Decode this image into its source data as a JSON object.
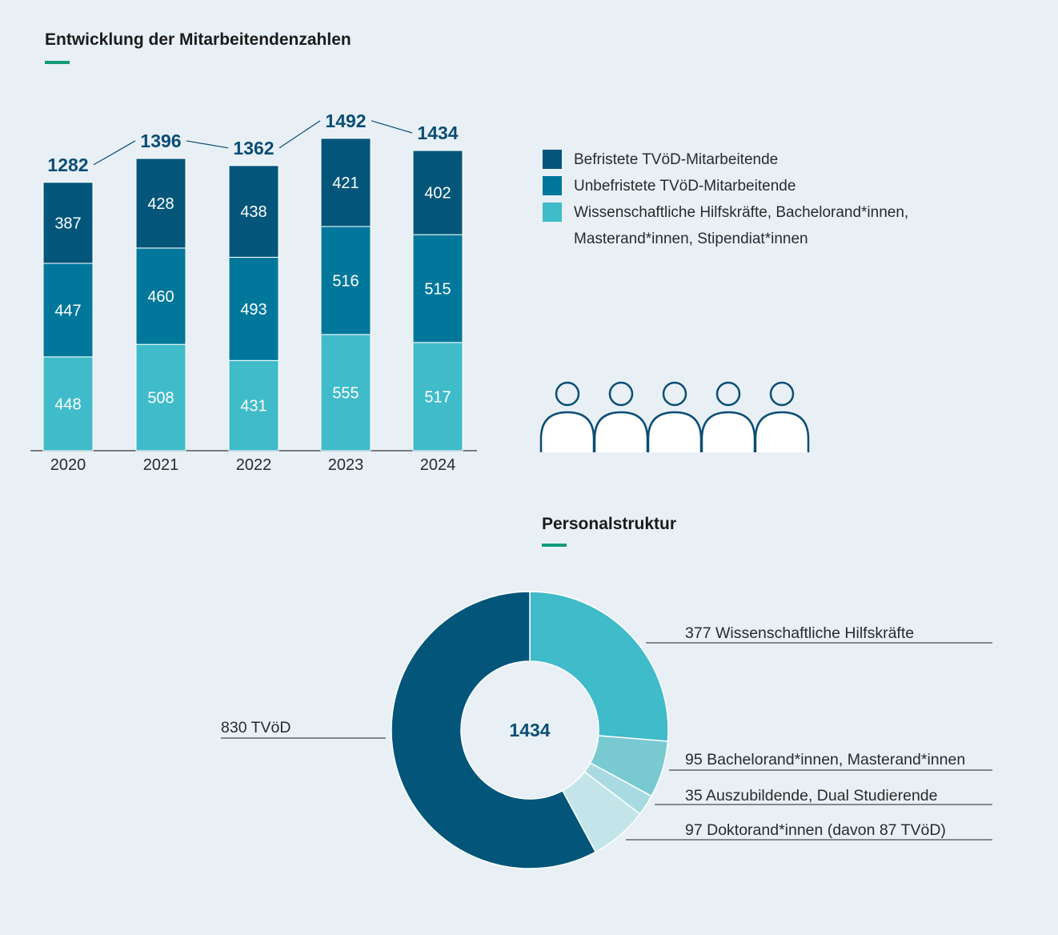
{
  "colors": {
    "background": "#e8f0f6",
    "accent": "#119a78",
    "befristet": "#03567a",
    "unbefristet": "#00779b",
    "wiss": "#3fbbc9",
    "total_label": "#0a4d74",
    "axis": "#555555"
  },
  "bar_section": {
    "title": "Entwicklung der Mitarbeitendenzahlen"
  },
  "legend": [
    {
      "label": "Befristete TVöD-Mitarbeitende",
      "color": "#03567a"
    },
    {
      "label": "Unbefristete TVöD-Mitarbeitende",
      "color": "#00779b"
    },
    {
      "label": "Wissenschaftliche Hilfskräfte, Bachelorand*innen, Masterand*innen, Stipendiat*innen",
      "color": "#3fbbc9"
    }
  ],
  "people_icon": {
    "name": "person-icon",
    "count": 5,
    "color": "#0a4d74"
  },
  "donut_section": {
    "title": "Personalstruktur"
  },
  "chart_data": [
    {
      "type": "bar",
      "stacked": true,
      "title": "Entwicklung der Mitarbeitendenzahlen",
      "categories": [
        "2020",
        "2021",
        "2022",
        "2023",
        "2024"
      ],
      "series": [
        {
          "name": "Wissenschaftliche Hilfskräfte, Bachelorand*innen, Masterand*innen, Stipendiat*innen",
          "color": "#3fbbc9",
          "values": [
            448,
            508,
            431,
            555,
            517
          ]
        },
        {
          "name": "Unbefristete TVöD-Mitarbeitende",
          "color": "#00779b",
          "values": [
            447,
            460,
            493,
            516,
            515
          ]
        },
        {
          "name": "Befristete TVöD-Mitarbeitende",
          "color": "#03567a",
          "values": [
            387,
            428,
            438,
            421,
            402
          ]
        }
      ],
      "totals": [
        1282,
        1396,
        1362,
        1492,
        1434
      ],
      "legend_position": "right",
      "grid": false
    },
    {
      "type": "pie",
      "donut": true,
      "title": "Personalstruktur",
      "center_label": "1434",
      "slices": [
        {
          "label": "377 Wissenschaftliche Hilfskräfte",
          "value": 377,
          "color": "#3fbbc9"
        },
        {
          "label": "95 Bachelorand*innen, Masterand*innen",
          "value": 95,
          "color": "#79c9d1"
        },
        {
          "label": "35 Auszubildende, Dual Studierende",
          "value": 35,
          "color": "#a8dbe1"
        },
        {
          "label": "97 Doktorand*innen (davon 87 TVöD)",
          "value": 97,
          "color": "#c3e5e9"
        },
        {
          "label": "830 TVöD",
          "value": 830,
          "color": "#03567a"
        }
      ]
    }
  ]
}
